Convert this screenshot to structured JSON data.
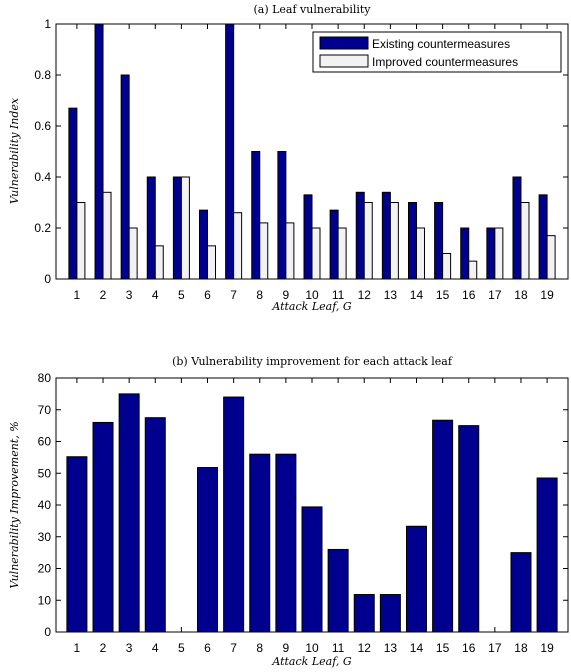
{
  "chart_data": [
    {
      "type": "bar",
      "title": "(a) Leaf vulnerability",
      "xlabel": "Attack Leaf, G",
      "ylabel": "Vulnerability Index",
      "categories": [
        "1",
        "2",
        "3",
        "4",
        "5",
        "6",
        "7",
        "8",
        "9",
        "10",
        "11",
        "12",
        "13",
        "14",
        "15",
        "16",
        "17",
        "18",
        "19"
      ],
      "ylim": [
        0,
        1
      ],
      "yticks": [
        "0",
        "0.2",
        "0.4",
        "0.6",
        "0.8",
        "1"
      ],
      "grid": false,
      "legend": "top-right",
      "series": [
        {
          "name": "Existing countermeasures",
          "color": "#00008f",
          "values": [
            0.67,
            1.0,
            0.8,
            0.4,
            0.4,
            0.27,
            1.0,
            0.5,
            0.5,
            0.33,
            0.27,
            0.34,
            0.34,
            0.3,
            0.3,
            0.2,
            0.2,
            0.4,
            0.33
          ]
        },
        {
          "name": "Improved countermeasures",
          "color": "#f2f2f2",
          "values": [
            0.3,
            0.34,
            0.2,
            0.13,
            0.4,
            0.13,
            0.26,
            0.22,
            0.22,
            0.2,
            0.2,
            0.3,
            0.3,
            0.2,
            0.1,
            0.07,
            0.2,
            0.3,
            0.17
          ]
        }
      ]
    },
    {
      "type": "bar",
      "title": "(b) Vulnerability improvement for each attack leaf",
      "xlabel": "Attack Leaf, G",
      "ylabel": "Vulnerability Improvement, %",
      "categories": [
        "1",
        "2",
        "3",
        "4",
        "5",
        "6",
        "7",
        "8",
        "9",
        "10",
        "11",
        "12",
        "13",
        "14",
        "15",
        "16",
        "17",
        "18",
        "19"
      ],
      "ylim": [
        0,
        80
      ],
      "yticks": [
        "0",
        "10",
        "20",
        "30",
        "40",
        "50",
        "60",
        "70",
        "80"
      ],
      "grid": false,
      "series": [
        {
          "color": "#00008f",
          "values": [
            55.2,
            66,
            75,
            67.5,
            0,
            51.8,
            74,
            56,
            56,
            39.4,
            26,
            11.8,
            11.8,
            33.3,
            66.7,
            65,
            0,
            25,
            48.5
          ]
        }
      ]
    }
  ]
}
